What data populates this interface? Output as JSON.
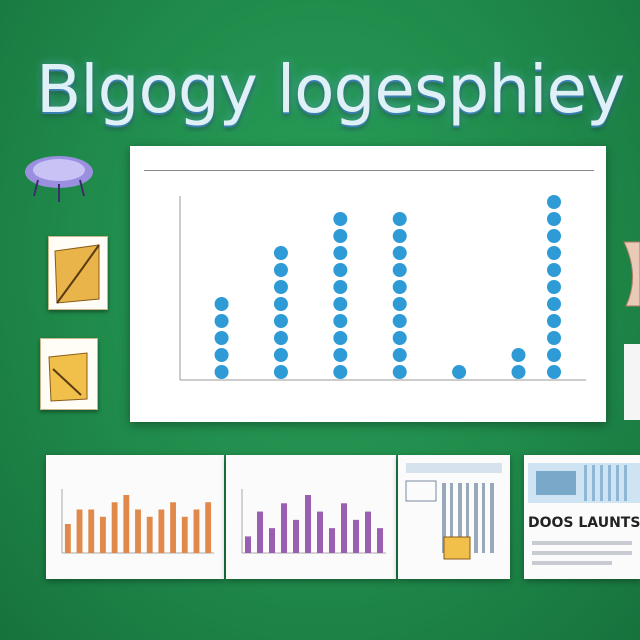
{
  "poster_title": "Blgogy logesphiey",
  "panel_heading": "",
  "chart_data": {
    "type": "scatter",
    "style": "dot-plot",
    "title": "",
    "xlabel": "",
    "ylabel": "",
    "categories": [
      "",
      "",
      "",
      "",
      "",
      ""
    ],
    "values": [
      5,
      8,
      10,
      10,
      1,
      2
    ],
    "extra_column": 11,
    "ylim": [
      0,
      11
    ],
    "grid": false,
    "legend": "none",
    "dot_color": "#2e9bd6"
  },
  "thumbnails": [
    {
      "title": "",
      "bars": [
        4,
        6,
        6,
        5,
        7,
        8,
        6,
        5,
        6,
        7,
        5,
        6,
        7
      ],
      "bar_color": "#e0894a"
    },
    {
      "title": "",
      "bars": [
        2,
        5,
        3,
        6,
        4,
        7,
        5,
        3,
        6,
        4,
        5,
        3
      ],
      "bar_color": "#9a5fb0"
    },
    {
      "title": ""
    },
    {
      "title": "DOOS LAUNTS"
    }
  ]
}
